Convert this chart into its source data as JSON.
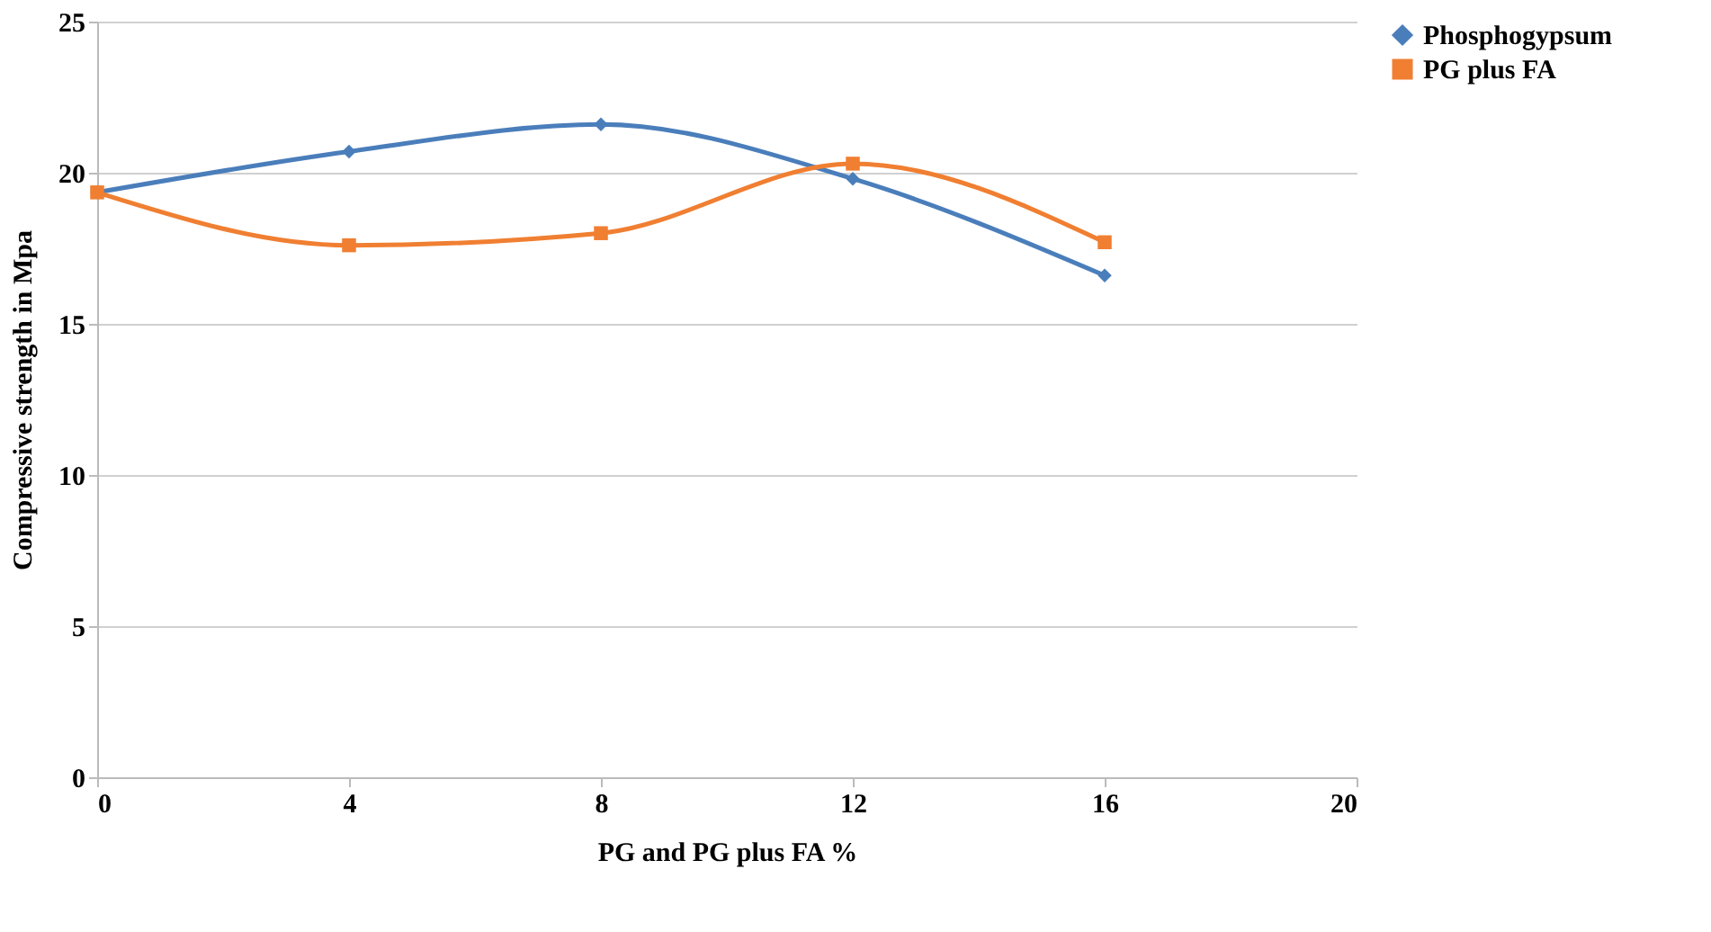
{
  "chart_data": {
    "type": "line",
    "xlabel": "PG  and PG plus  FA %",
    "ylabel": "Compressive strength in Mpa",
    "x": [
      0,
      4,
      8,
      12,
      16
    ],
    "series": [
      {
        "name": "Phosphogypsum",
        "color": "#4a7ebb",
        "marker": "diamond",
        "values": [
          19.35,
          20.7,
          21.6,
          19.8,
          16.6
        ]
      },
      {
        "name": "PG plus FA",
        "color": "#f07f32",
        "marker": "square",
        "values": [
          19.35,
          17.6,
          18.0,
          20.3,
          17.7
        ]
      }
    ],
    "xlim": [
      0,
      20
    ],
    "xticks": [
      0,
      4,
      8,
      12,
      16,
      20
    ],
    "ylim": [
      0,
      25
    ],
    "yticks": [
      0,
      5,
      10,
      15,
      20,
      25
    ],
    "grid": "y",
    "legend": "right"
  }
}
